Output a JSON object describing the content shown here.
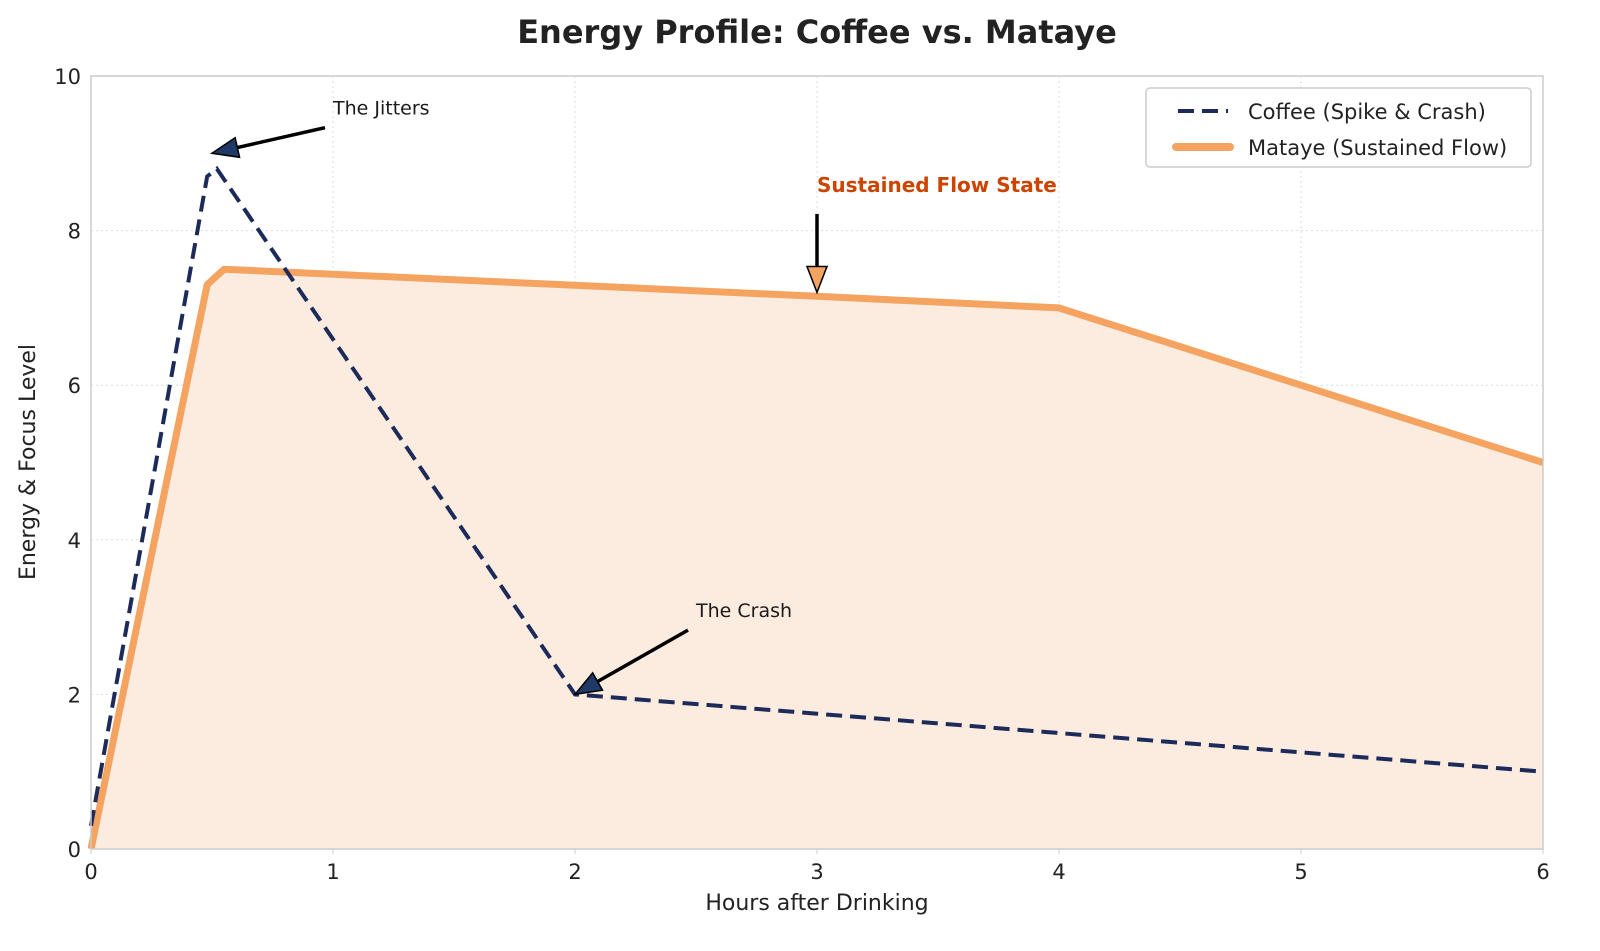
{
  "chart_data": {
    "type": "line",
    "title": "Energy Profile: Coffee vs. Mataye",
    "xlabel": "Hours after Drinking",
    "ylabel": "Energy & Focus Level",
    "xlim": [
      0,
      6
    ],
    "ylim": [
      0,
      10
    ],
    "xticks": [
      0,
      1,
      2,
      3,
      4,
      5,
      6
    ],
    "yticks": [
      0,
      2,
      4,
      6,
      8,
      10
    ],
    "grid": true,
    "legend_placement": "top-right",
    "series": [
      {
        "name": "Coffee (Spike & Crash)",
        "style": "dashed",
        "color": "#1c2b5a",
        "x": [
          0,
          0.48,
          0.52,
          2,
          3,
          4,
          5,
          6
        ],
        "y": [
          0.3,
          8.7,
          8.8,
          2,
          1.75,
          1.5,
          1.25,
          1
        ]
      },
      {
        "name": "Mataye (Sustained Flow)",
        "style": "solid",
        "color": "#f4a460",
        "fill": "#fcebdf",
        "x": [
          0,
          0.48,
          0.55,
          3,
          4,
          5,
          6
        ],
        "y": [
          0,
          7.3,
          7.5,
          7.15,
          7,
          6,
          5
        ]
      }
    ],
    "annotations": [
      {
        "text": "The Jitters",
        "xy": [
          0.5,
          9
        ],
        "xytext": [
          1.0,
          9.5
        ],
        "color": "#1a1a1a",
        "arrow_color": "#1f3a66",
        "bold": false
      },
      {
        "text": "The Crash",
        "xy": [
          2,
          2
        ],
        "xytext": [
          2.5,
          3
        ],
        "color": "#1a1a1a",
        "arrow_color": "#1f3a66",
        "bold": false
      },
      {
        "text": "Sustained Flow State",
        "xy": [
          3,
          7.2
        ],
        "xytext": [
          3,
          8.5
        ],
        "color": "#cc4400",
        "arrow_color": "#f4a460",
        "bold": true
      }
    ]
  }
}
